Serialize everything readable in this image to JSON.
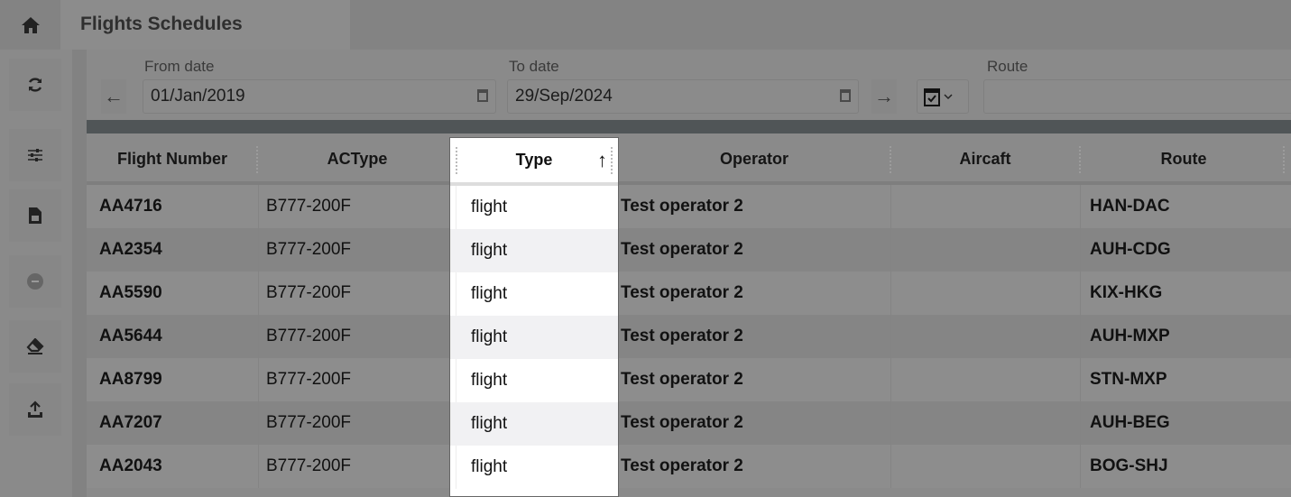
{
  "header": {
    "home_icon": "home-icon",
    "tab_title": "Flights Schedules"
  },
  "sidebar": {
    "buttons": [
      {
        "icon": "refresh-icon"
      },
      {
        "icon": "sliders-icon"
      },
      {
        "icon": "spreadsheet-icon"
      },
      {
        "icon": "remove-circle-icon"
      },
      {
        "icon": "eraser-icon"
      },
      {
        "icon": "upload-icon"
      }
    ]
  },
  "filters": {
    "from_label": "From date",
    "from_value": "01/Jan/2019",
    "to_label": "To date",
    "to_value": "29/Sep/2024",
    "route_label": "Route",
    "route_value": "",
    "prev": "←",
    "next": "→"
  },
  "table": {
    "columns": [
      "Flight Number",
      "ACType",
      "Type",
      "Operator",
      "Aircaft",
      "Route"
    ],
    "sort": {
      "column": "Type",
      "direction": "ascending",
      "icon": "↑"
    },
    "rows": [
      [
        "AA4716",
        "B777-200F",
        "flight",
        "Test operator 2",
        "",
        "HAN-DAC"
      ],
      [
        "AA2354",
        "B777-200F",
        "flight",
        "Test operator 2",
        "",
        "AUH-CDG"
      ],
      [
        "AA5590",
        "B777-200F",
        "flight",
        "Test operator 2",
        "",
        "KIX-HKG"
      ],
      [
        "AA5644",
        "B777-200F",
        "flight",
        "Test operator 2",
        "",
        "AUH-MXP"
      ],
      [
        "AA8799",
        "B777-200F",
        "flight",
        "Test operator 2",
        "",
        "STN-MXP"
      ],
      [
        "AA7207",
        "B777-200F",
        "flight",
        "Test operator 2",
        "",
        "AUH-BEG"
      ],
      [
        "AA2043",
        "B777-200F",
        "flight",
        "Test operator 2",
        "",
        "BOG-SHJ"
      ]
    ]
  }
}
